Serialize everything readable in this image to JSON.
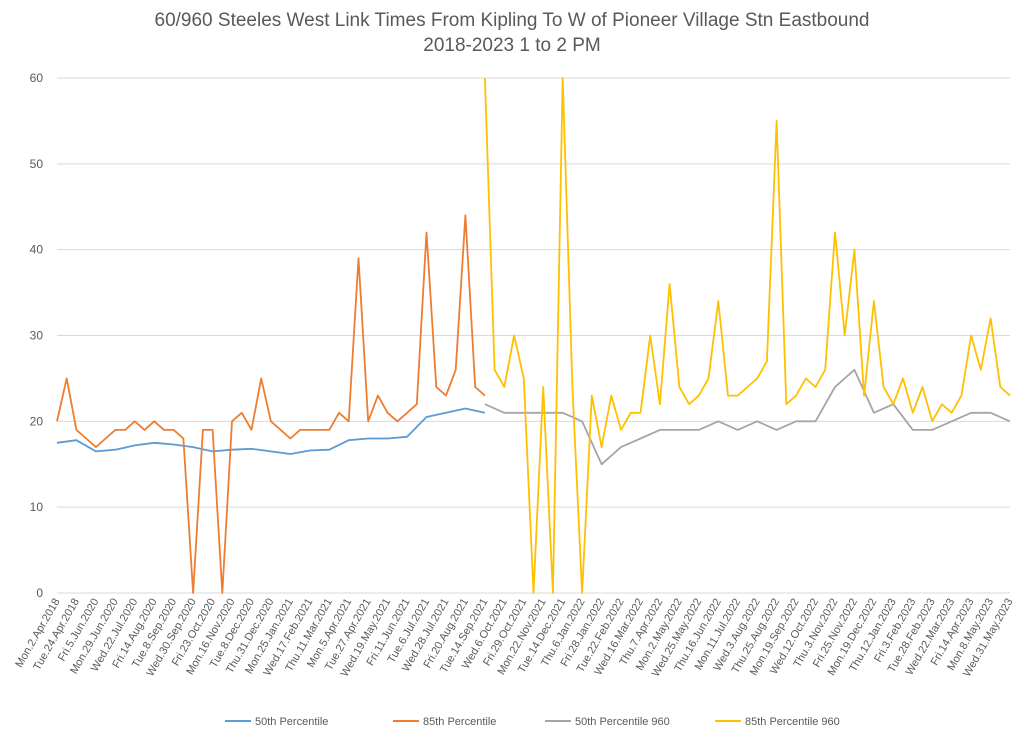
{
  "chart_data": {
    "type": "line",
    "title": "60/960 Steeles West Link Times From Kipling To W of Pioneer Village Stn Eastbound",
    "subtitle": "2018-2023 1 to 2 PM",
    "xlabel": "",
    "ylabel": "",
    "ylim": [
      0,
      60
    ],
    "y_ticks": [
      0,
      10,
      20,
      30,
      40,
      50,
      60
    ],
    "grid": true,
    "legend_position": "bottom",
    "x_tick_labels": [
      "Mon.2.Apr.2018",
      "Tue.24.Apr.2018",
      "Fri.5.Jun.2020",
      "Mon.29.Jun.2020",
      "Wed.22.Jul.2020",
      "Fri.14.Aug.2020",
      "Tue.8.Sep.2020",
      "Wed.30.Sep.2020",
      "Fri.23.Oct.2020",
      "Mon.16.Nov.2020",
      "Tue.8.Dec.2020",
      "Thu.31.Dec.2020",
      "Mon.25.Jan.2021",
      "Wed.17.Feb.2021",
      "Thu.11.Mar.2021",
      "Mon.5.Apr.2021",
      "Tue.27.Apr.2021",
      "Wed.19.May.2021",
      "Fri.11.Jun.2021",
      "Tue.6.Jul.2021",
      "Wed.28.Jul.2021",
      "Fri.20.Aug.2021",
      "Tue.14.Sep.2021",
      "Wed.6.Oct.2021",
      "Fri.29.Oct.2021",
      "Mon.22.Nov.2021",
      "Tue.14.Dec.2021",
      "Thu.6.Jan.2022",
      "Fri.28.Jan.2022",
      "Tue.22.Feb.2022",
      "Wed.16.Mar.2022",
      "Thu.7.Apr.2022",
      "Mon.2.May.2022",
      "Wed.25.May.2022",
      "Thu.16.Jun.2022",
      "Mon.11.Jul.2022",
      "Wed.3.Aug.2022",
      "Thu.25.Aug.2022",
      "Mon.19.Sep.2022",
      "Wed.12.Oct.2022",
      "Thu.3.Nov.2022",
      "Fri.25.Nov.2022",
      "Mon.19.Dec.2022",
      "Thu.12.Jan.2023",
      "Fri.3.Feb.2023",
      "Tue.28.Feb.2023",
      "Wed.22.Mar.2023",
      "Fri.14.Apr.2023",
      "Mon.8.May.2023",
      "Wed.31.May.2023"
    ],
    "series": [
      {
        "name": "50th Percentile",
        "color": "#5B9BD5",
        "x": [
          0,
          1,
          2,
          3,
          4,
          5,
          6,
          7,
          8,
          9,
          10,
          11,
          12,
          13,
          14,
          15,
          16,
          17,
          18,
          19,
          20,
          21,
          22
        ],
        "y": [
          17.5,
          17.8,
          16.5,
          16.7,
          17.2,
          17.5,
          17.3,
          17.0,
          16.5,
          16.7,
          16.8,
          16.5,
          16.2,
          16.6,
          16.7,
          17.8,
          18.0,
          18.0,
          18.2,
          20.5,
          21.0,
          21.5,
          21.0
        ]
      },
      {
        "name": "85th Percentile",
        "color": "#ED7D31",
        "x": [
          0,
          0.5,
          1,
          1.5,
          2,
          2.5,
          3,
          3.5,
          4,
          4.5,
          5,
          5.5,
          6,
          6.5,
          7,
          7.5,
          8,
          8.5,
          9,
          9.5,
          10,
          10.5,
          11,
          11.5,
          12,
          12.5,
          13,
          13.5,
          14,
          14.5,
          15,
          15.5,
          16,
          16.5,
          17,
          17.5,
          18,
          18.5,
          19,
          19.5,
          20,
          20.5,
          21,
          21.5,
          22
        ],
        "y": [
          20,
          25,
          19,
          18,
          17,
          18,
          19,
          19,
          20,
          19,
          20,
          19,
          19,
          18,
          0,
          19,
          19,
          0,
          20,
          21,
          19,
          25,
          20,
          19,
          18,
          19,
          19,
          19,
          19,
          21,
          20,
          39,
          20,
          23,
          21,
          20,
          21,
          22,
          42,
          24,
          23,
          26,
          44,
          24,
          23
        ]
      },
      {
        "name": "50th Percentile 960",
        "color": "#A5A5A5",
        "x": [
          22,
          23,
          24,
          25,
          26,
          27,
          28,
          29,
          30,
          31,
          32,
          33,
          34,
          35,
          36,
          37,
          38,
          39,
          40,
          41,
          42,
          43,
          44,
          45,
          46,
          47,
          48,
          49
        ],
        "y": [
          22,
          21,
          21,
          21,
          21,
          20,
          15,
          17,
          18,
          19,
          19,
          19,
          20,
          19,
          20,
          19,
          20,
          20,
          24,
          26,
          21,
          22,
          19,
          19,
          20,
          21,
          21,
          20
        ]
      },
      {
        "name": "85th Percentile 960",
        "color": "#FFC000",
        "x": [
          22,
          22.5,
          23,
          23.5,
          24,
          24.5,
          25,
          25.5,
          26,
          26.5,
          27,
          27.5,
          28,
          28.5,
          29,
          29.5,
          30,
          30.5,
          31,
          31.5,
          32,
          32.5,
          33,
          33.5,
          34,
          34.5,
          35,
          35.5,
          36,
          36.5,
          37,
          37.5,
          38,
          38.5,
          39,
          39.5,
          40,
          40.5,
          41,
          41.5,
          42,
          42.5,
          43,
          43.5,
          44,
          44.5,
          45,
          45.5,
          46,
          46.5,
          47,
          47.5,
          48,
          48.5,
          49
        ],
        "y": [
          60,
          26,
          24,
          30,
          25,
          0,
          24,
          0,
          60,
          24,
          0,
          23,
          17,
          23,
          19,
          21,
          21,
          30,
          22,
          36,
          24,
          22,
          23,
          25,
          34,
          23,
          23,
          24,
          25,
          27,
          55,
          22,
          23,
          25,
          24,
          26,
          42,
          30,
          40,
          23,
          34,
          24,
          22,
          25,
          21,
          24,
          20,
          22,
          21,
          23,
          30,
          26,
          32,
          24,
          23
        ]
      }
    ]
  }
}
